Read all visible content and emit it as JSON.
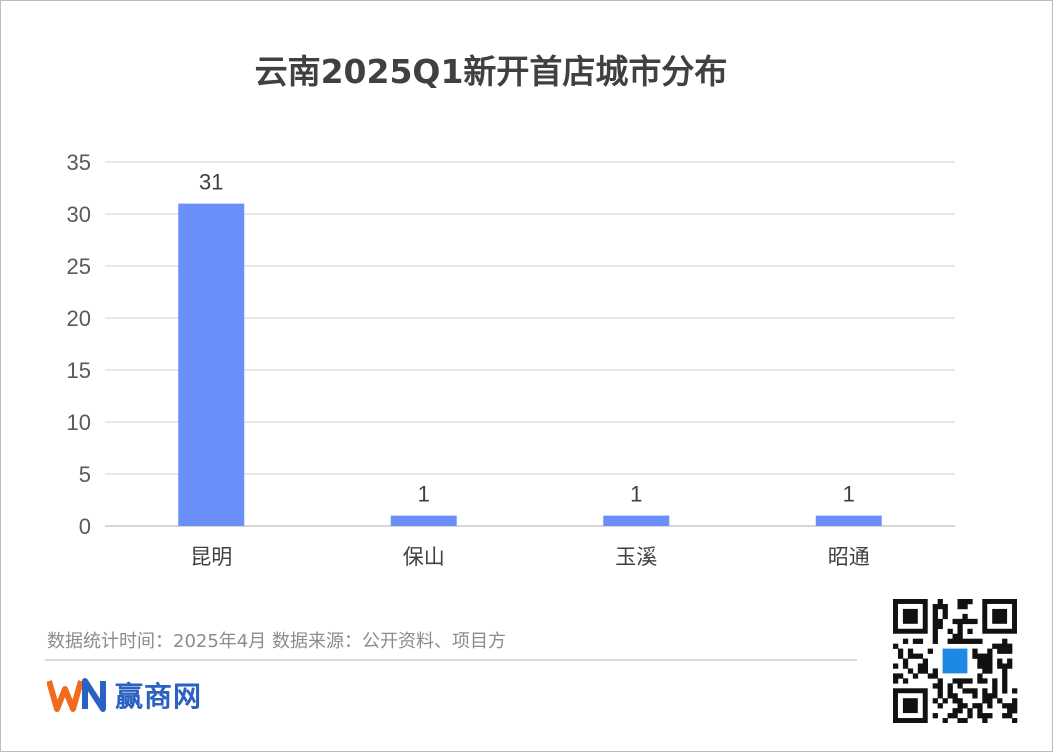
{
  "chart_data": {
    "type": "bar",
    "title": "云南2025Q1新开首店城市分布",
    "categories": [
      "昆明",
      "保山",
      "玉溪",
      "昭通"
    ],
    "values": [
      31,
      1,
      1,
      1
    ],
    "data_labels": [
      "31",
      "1",
      "1",
      "1"
    ],
    "ylim": [
      0,
      35
    ],
    "yticks": [
      0,
      5,
      10,
      15,
      20,
      25,
      30,
      35
    ],
    "grid": true,
    "bar_color": "#6b8ff8"
  },
  "footer": {
    "note": "数据统计时间：2025年4月    数据来源：公开资料、项目方",
    "brand_name": "赢商网"
  },
  "colors": {
    "brand_orange": "#f26a1b",
    "brand_blue": "#2b62c2"
  }
}
